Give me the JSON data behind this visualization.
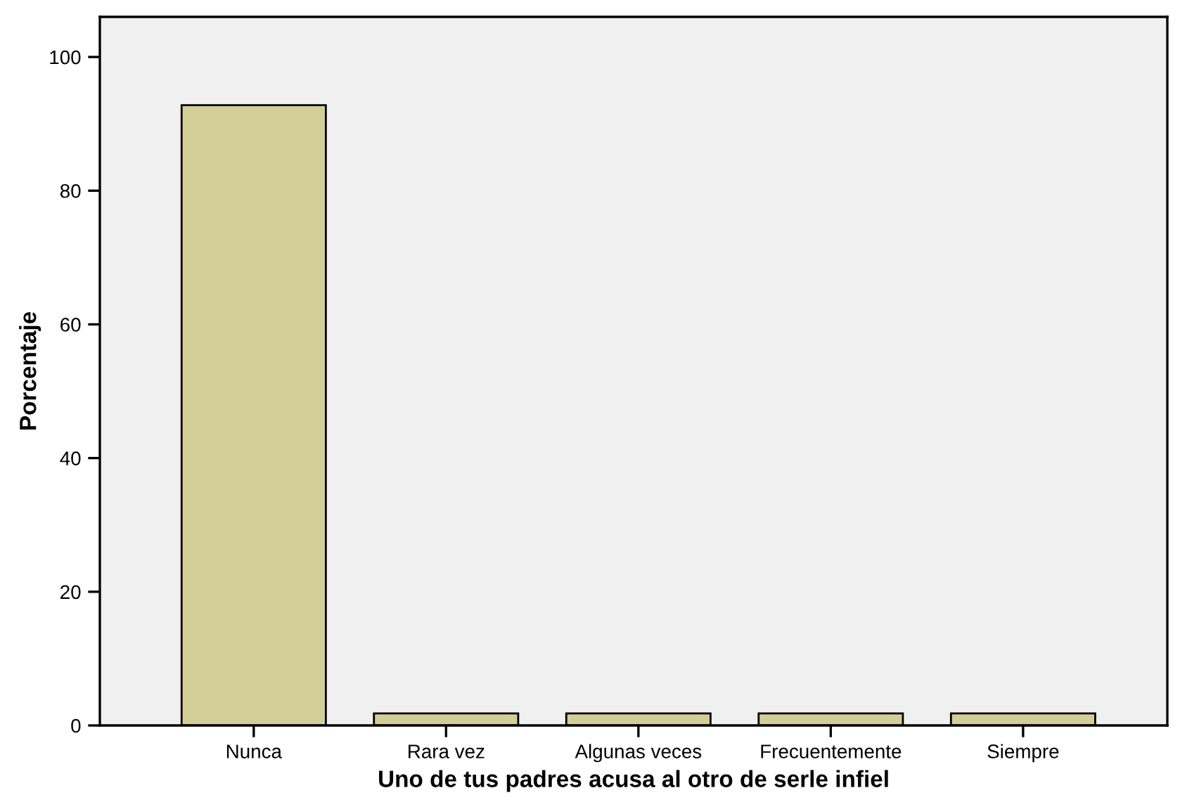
{
  "chart_data": {
    "type": "bar",
    "xlabel": "Uno de tus padres acusa al otro de serle infiel",
    "ylabel": "Porcentaje",
    "categories": [
      "Nunca",
      "Rara vez",
      "Algunas veces",
      "Frecuentemente",
      "Siempre"
    ],
    "values": [
      92.8,
      1.8,
      1.8,
      1.8,
      1.8
    ],
    "color": "#d3ce97",
    "ylim": [
      0,
      106
    ],
    "yticks": [
      0,
      20,
      40,
      60,
      80,
      100
    ],
    "grid": false,
    "legend": false
  }
}
